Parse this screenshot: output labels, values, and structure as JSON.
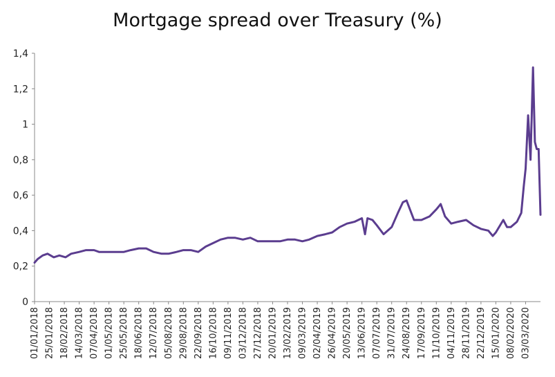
{
  "chart_data": {
    "type": "line",
    "title": "Mortgage spread over Treasury (%)",
    "xlabel": "",
    "ylabel": "",
    "x_start": "01/01/2018",
    "x_end": "27/03/2020",
    "ylim": [
      0,
      1.4
    ],
    "yticks": [
      "0",
      "0,2",
      "0,4",
      "0,6",
      "0,8",
      "1",
      "1,2",
      "1,4"
    ],
    "xticks": [
      "01/01/2018",
      "25/01/2018",
      "18/02/2018",
      "14/03/2018",
      "07/04/2018",
      "01/05/2018",
      "25/05/2018",
      "18/06/2018",
      "12/07/2018",
      "05/08/2018",
      "29/08/2018",
      "22/09/2018",
      "16/10/2018",
      "09/11/2018",
      "03/12/2018",
      "27/12/2018",
      "20/01/2019",
      "13/02/2019",
      "09/03/2019",
      "02/04/2019",
      "26/04/2019",
      "20/05/2019",
      "13/06/2019",
      "07/07/2019",
      "31/07/2019",
      "24/08/2019",
      "17/09/2019",
      "11/10/2019",
      "04/11/2019",
      "28/11/2019",
      "22/12/2019",
      "15/01/2020",
      "08/02/2020",
      "03/03/2020"
    ],
    "grid": false,
    "legend": "none",
    "series": [
      {
        "color": "#5b3d8f",
        "points": [
          [
            "01/01/2018",
            0.22
          ],
          [
            "06/01/2018",
            0.24
          ],
          [
            "14/01/2018",
            0.26
          ],
          [
            "22/01/2018",
            0.27
          ],
          [
            "01/02/2018",
            0.25
          ],
          [
            "10/02/2018",
            0.26
          ],
          [
            "20/02/2018",
            0.25
          ],
          [
            "01/03/2018",
            0.27
          ],
          [
            "14/03/2018",
            0.28
          ],
          [
            "25/03/2018",
            0.29
          ],
          [
            "07/04/2018",
            0.29
          ],
          [
            "15/04/2018",
            0.28
          ],
          [
            "01/05/2018",
            0.28
          ],
          [
            "15/05/2018",
            0.28
          ],
          [
            "25/05/2018",
            0.28
          ],
          [
            "05/06/2018",
            0.29
          ],
          [
            "18/06/2018",
            0.3
          ],
          [
            "30/06/2018",
            0.3
          ],
          [
            "12/07/2018",
            0.28
          ],
          [
            "25/07/2018",
            0.27
          ],
          [
            "05/08/2018",
            0.27
          ],
          [
            "18/08/2018",
            0.28
          ],
          [
            "29/08/2018",
            0.29
          ],
          [
            "10/09/2018",
            0.29
          ],
          [
            "22/09/2018",
            0.28
          ],
          [
            "04/10/2018",
            0.31
          ],
          [
            "16/10/2018",
            0.33
          ],
          [
            "28/10/2018",
            0.35
          ],
          [
            "09/11/2018",
            0.36
          ],
          [
            "20/11/2018",
            0.36
          ],
          [
            "03/12/2018",
            0.35
          ],
          [
            "15/12/2018",
            0.36
          ],
          [
            "27/12/2018",
            0.34
          ],
          [
            "08/01/2019",
            0.34
          ],
          [
            "20/01/2019",
            0.34
          ],
          [
            "01/02/2019",
            0.34
          ],
          [
            "13/02/2019",
            0.35
          ],
          [
            "25/02/2019",
            0.35
          ],
          [
            "09/03/2019",
            0.34
          ],
          [
            "20/03/2019",
            0.35
          ],
          [
            "02/04/2019",
            0.37
          ],
          [
            "15/04/2019",
            0.38
          ],
          [
            "26/04/2019",
            0.39
          ],
          [
            "08/05/2019",
            0.42
          ],
          [
            "20/05/2019",
            0.44
          ],
          [
            "01/06/2019",
            0.45
          ],
          [
            "13/06/2019",
            0.47
          ],
          [
            "18/06/2019",
            0.38
          ],
          [
            "22/06/2019",
            0.47
          ],
          [
            "30/06/2019",
            0.46
          ],
          [
            "07/07/2019",
            0.43
          ],
          [
            "18/07/2019",
            0.38
          ],
          [
            "31/07/2019",
            0.42
          ],
          [
            "10/08/2019",
            0.5
          ],
          [
            "18/08/2019",
            0.56
          ],
          [
            "24/08/2019",
            0.57
          ],
          [
            "05/09/2019",
            0.46
          ],
          [
            "17/09/2019",
            0.46
          ],
          [
            "30/09/2019",
            0.48
          ],
          [
            "11/10/2019",
            0.52
          ],
          [
            "18/10/2019",
            0.55
          ],
          [
            "25/10/2019",
            0.48
          ],
          [
            "04/11/2019",
            0.44
          ],
          [
            "15/11/2019",
            0.45
          ],
          [
            "28/11/2019",
            0.46
          ],
          [
            "10/12/2019",
            0.43
          ],
          [
            "22/12/2019",
            0.41
          ],
          [
            "03/01/2020",
            0.4
          ],
          [
            "10/01/2020",
            0.37
          ],
          [
            "15/01/2020",
            0.39
          ],
          [
            "27/01/2020",
            0.46
          ],
          [
            "02/02/2020",
            0.42
          ],
          [
            "08/02/2020",
            0.42
          ],
          [
            "18/02/2020",
            0.45
          ],
          [
            "25/02/2020",
            0.5
          ],
          [
            "29/02/2020",
            0.65
          ],
          [
            "03/03/2020",
            0.75
          ],
          [
            "07/03/2020",
            1.05
          ],
          [
            "11/03/2020",
            0.8
          ],
          [
            "15/03/2020",
            1.32
          ],
          [
            "18/03/2020",
            0.9
          ],
          [
            "21/03/2020",
            0.86
          ],
          [
            "24/03/2020",
            0.86
          ],
          [
            "27/03/2020",
            0.49
          ]
        ]
      }
    ]
  }
}
